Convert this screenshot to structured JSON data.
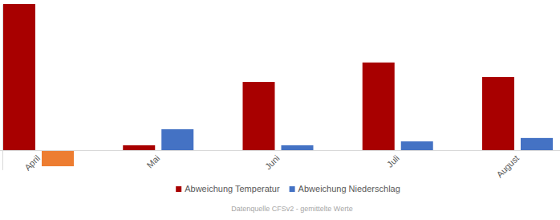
{
  "chart_data": {
    "type": "bar",
    "categories": [
      "April",
      "Mai",
      "Juni",
      "Juli",
      "August"
    ],
    "series": [
      {
        "name": "Abweichung Temperatur",
        "color": "#a80000",
        "values": [
          3.0,
          0.1,
          1.4,
          1.8,
          1.5
        ]
      },
      {
        "name": "Abweichung Niederschlag",
        "color": "#4472c4",
        "colors": [
          "#ed7d31",
          "#4472c4",
          "#4472c4",
          "#4472c4",
          "#4472c4"
        ],
        "values": [
          -0.33,
          0.43,
          0.1,
          0.18,
          0.25
        ]
      }
    ],
    "ylim": [
      -0.4,
      3.0
    ],
    "tick_labels": "x",
    "grid": false,
    "legend": "bottom",
    "caption": "Datenquelle CFSv2 - gemittelte Werte"
  }
}
